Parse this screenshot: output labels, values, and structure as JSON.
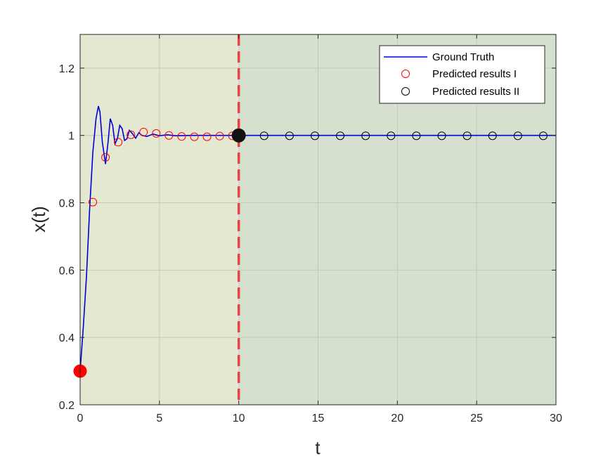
{
  "chart_data": {
    "type": "line",
    "title": "",
    "xlabel": "t",
    "ylabel": "x(t)",
    "xlim": [
      0,
      30
    ],
    "ylim": [
      0.2,
      1.3
    ],
    "xticks": [
      0,
      5,
      10,
      15,
      20,
      25,
      30
    ],
    "xtick_labels": [
      "0",
      "5",
      "10",
      "15",
      "20",
      "25",
      "30"
    ],
    "yticks": [
      0.2,
      0.4,
      0.6,
      0.8,
      1.0,
      1.2
    ],
    "ytick_labels": [
      "0.2",
      "0.4",
      "0.6",
      "0.8",
      "1",
      "1.2"
    ],
    "grid": true,
    "legend_position": "top-right",
    "regions": [
      {
        "x_from": 0,
        "x_to": 10,
        "color": "#e5e8d0"
      },
      {
        "x_from": 10,
        "x_to": 30,
        "color": "#d6e0ce"
      }
    ],
    "vline": {
      "x": 10,
      "color": "#e84444",
      "style": "dashed"
    },
    "initial_point": {
      "x": 0,
      "y": 0.3,
      "color": "#ff0000"
    },
    "transition_point": {
      "x": 10,
      "y": 1.0,
      "color": "#111111"
    },
    "series": [
      {
        "name": "Ground Truth",
        "kind": "line",
        "color": "#0000dd",
        "x": [
          0,
          0.2,
          0.4,
          0.6,
          0.8,
          1.0,
          1.15,
          1.25,
          1.4,
          1.6,
          1.75,
          1.9,
          2.05,
          2.2,
          2.35,
          2.5,
          2.65,
          2.8,
          2.95,
          3.1,
          3.3,
          3.5,
          3.7,
          3.9,
          4.2,
          4.6,
          5.0,
          5.5,
          6.0,
          7.0,
          8.0,
          9.0,
          10.0,
          15,
          20,
          25,
          30
        ],
        "y": [
          0.3,
          0.43,
          0.58,
          0.78,
          0.95,
          1.05,
          1.087,
          1.07,
          0.98,
          0.915,
          0.975,
          1.05,
          1.03,
          0.975,
          0.99,
          1.03,
          1.02,
          0.985,
          0.99,
          1.015,
          1.005,
          0.992,
          1.008,
          1.0,
          0.997,
          1.004,
          0.999,
          1.002,
          0.999,
          1.0,
          1.0,
          1.0,
          1.0,
          1.0,
          1.0,
          1.0,
          1.0
        ]
      },
      {
        "name": "Predicted results I",
        "kind": "marker",
        "color": "#ff0000",
        "x": [
          0.8,
          1.6,
          2.4,
          3.2,
          4.0,
          4.8,
          5.6,
          6.4,
          7.2,
          8.0,
          8.8,
          9.6
        ],
        "y": [
          0.802,
          0.935,
          0.98,
          1.002,
          1.01,
          1.006,
          1.0,
          0.997,
          0.996,
          0.996,
          0.998,
          0.999
        ]
      },
      {
        "name": "Predicted results II",
        "kind": "marker",
        "color": "#000000",
        "x": [
          11.6,
          13.2,
          14.8,
          16.4,
          18.0,
          19.6,
          21.2,
          22.8,
          24.4,
          26.0,
          27.6,
          29.2
        ],
        "y": [
          0.999,
          0.999,
          0.999,
          0.999,
          0.999,
          0.999,
          0.999,
          0.999,
          0.999,
          0.999,
          0.999,
          0.999
        ]
      }
    ]
  }
}
